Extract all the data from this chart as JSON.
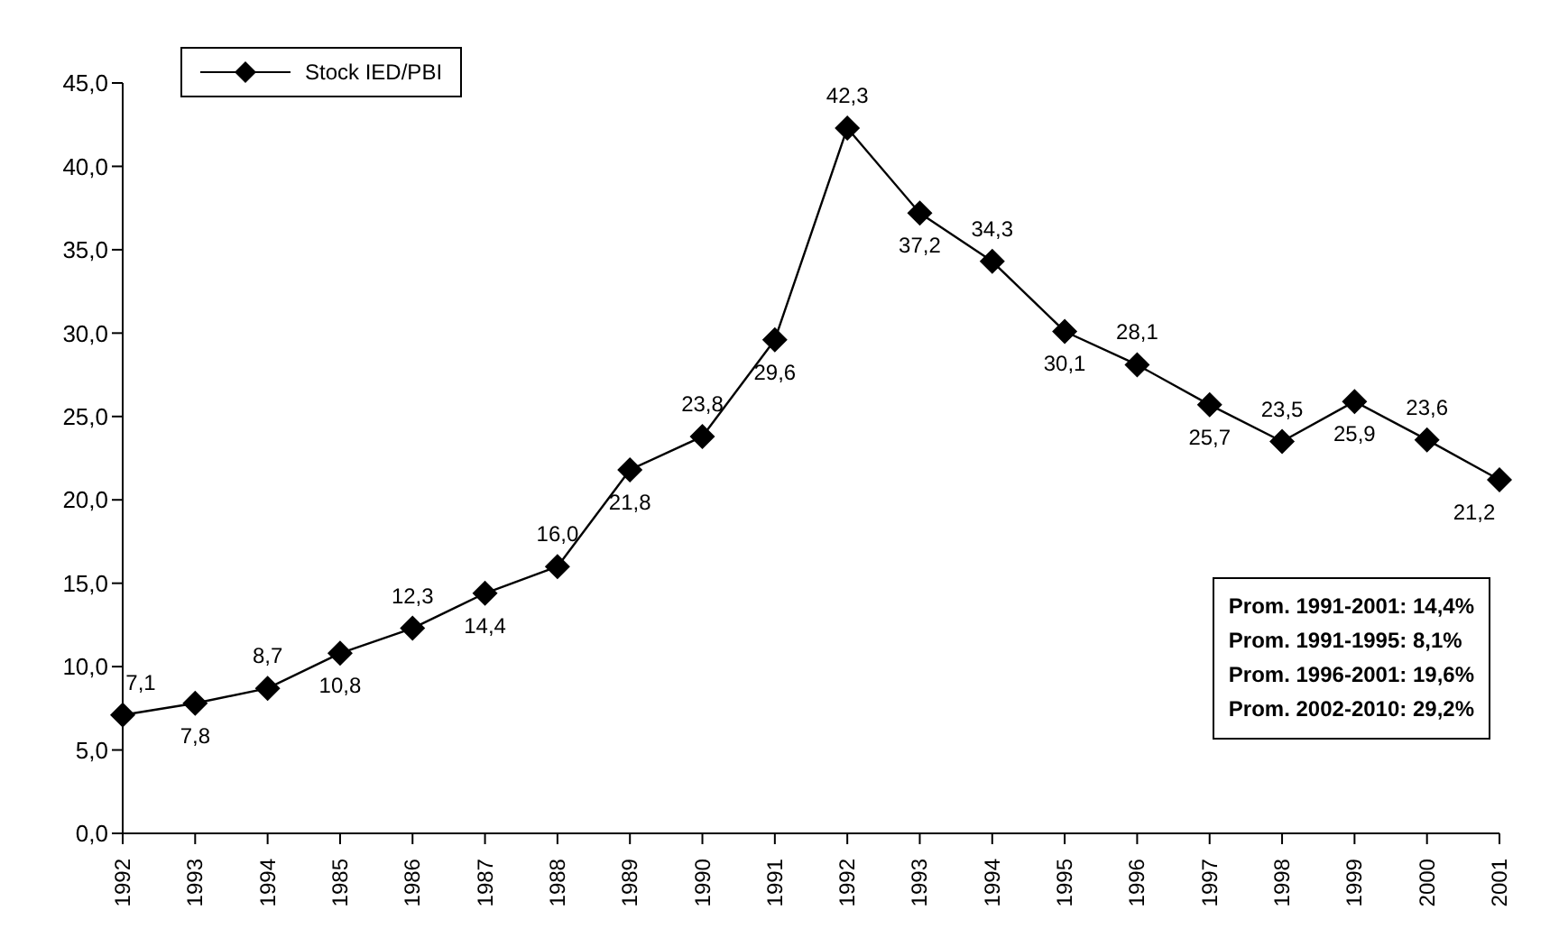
{
  "chart_data": {
    "type": "line",
    "categories": [
      "1992",
      "1993",
      "1994",
      "1985",
      "1986",
      "1987",
      "1988",
      "1989",
      "1990",
      "1991",
      "1992",
      "1993",
      "1994",
      "1995",
      "1996",
      "1997",
      "1998",
      "1999",
      "2000",
      "2001"
    ],
    "series": [
      {
        "name": "Stock IED/PBI",
        "color": "#000000",
        "values": [
          7.1,
          7.8,
          8.7,
          10.8,
          12.3,
          14.4,
          16.0,
          21.8,
          23.8,
          29.6,
          42.3,
          37.2,
          34.3,
          30.1,
          28.1,
          25.7,
          23.5,
          25.9,
          23.6,
          21.2
        ],
        "value_labels": [
          "7,1",
          "7,8",
          "8,7",
          "10,8",
          "12,3",
          "14,4",
          "16,0",
          "21,8",
          "23,8",
          "29,6",
          "42,3",
          "37,2",
          "34,3",
          "30,1",
          "28,1",
          "25,7",
          "23,5",
          "25,9",
          "23,6",
          "21,2"
        ]
      }
    ],
    "ylim": [
      0,
      45
    ],
    "yticks": [
      {
        "value": 0,
        "label": "0,0"
      },
      {
        "value": 5,
        "label": "5,0"
      },
      {
        "value": 10,
        "label": "10,0"
      },
      {
        "value": 15,
        "label": "15,0"
      },
      {
        "value": 20,
        "label": "20,0"
      },
      {
        "value": 25,
        "label": "25,0"
      },
      {
        "value": 30,
        "label": "30,0"
      },
      {
        "value": 35,
        "label": "35,0"
      },
      {
        "value": 40,
        "label": "40,0"
      },
      {
        "value": 45,
        "label": "45,0"
      }
    ],
    "marker": "diamond",
    "line_style": "solid",
    "legend": "top left",
    "grid": false,
    "annotations": [
      "Prom. 1991-2001: 14,4%",
      "Prom. 1991-1995: 8,1%",
      "Prom. 1996-2001: 19,6%",
      "Prom. 2002-2010: 29,2%"
    ]
  }
}
